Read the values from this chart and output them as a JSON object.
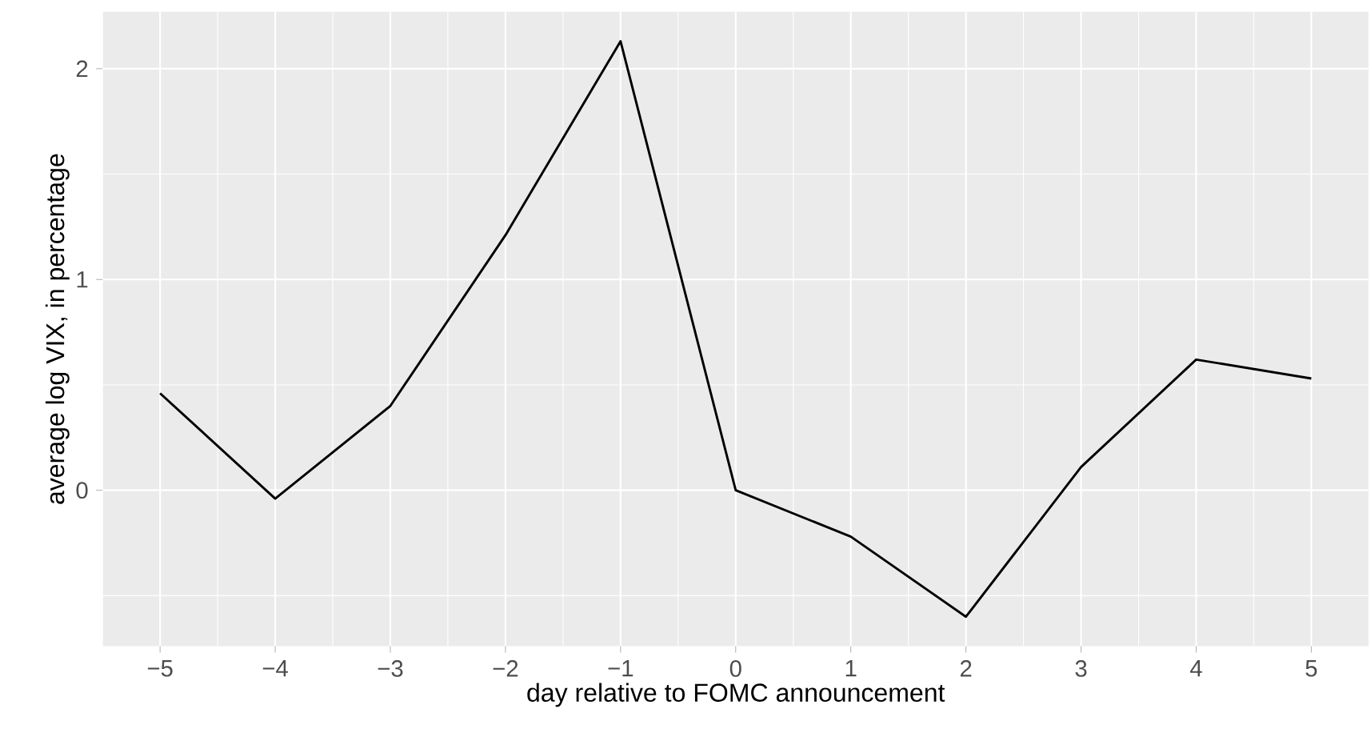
{
  "chart_data": {
    "type": "line",
    "xlabel": "day relative to FOMC announcement",
    "ylabel": "average log VIX, in percentage",
    "x": [
      -5,
      -4,
      -3,
      -2,
      -1,
      0,
      1,
      2,
      3,
      4,
      5
    ],
    "series": [
      {
        "color": "#000000",
        "values": [
          0.46,
          -0.04,
          0.4,
          1.21,
          2.13,
          0.0,
          -0.22,
          -0.6,
          0.11,
          0.62,
          0.53
        ]
      }
    ],
    "xlim": [
      -5.5,
      5.5
    ],
    "ylim": [
      -0.74,
      2.27
    ],
    "xticks": [
      {
        "value": -5,
        "label": "−5"
      },
      {
        "value": -4,
        "label": "−4"
      },
      {
        "value": -3,
        "label": "−3"
      },
      {
        "value": -2,
        "label": "−2"
      },
      {
        "value": -1,
        "label": "−1"
      },
      0,
      1,
      2,
      3,
      4,
      5
    ],
    "yticks": [
      0,
      1,
      2
    ],
    "grid": true,
    "marker": "none",
    "line_style": "solid"
  }
}
